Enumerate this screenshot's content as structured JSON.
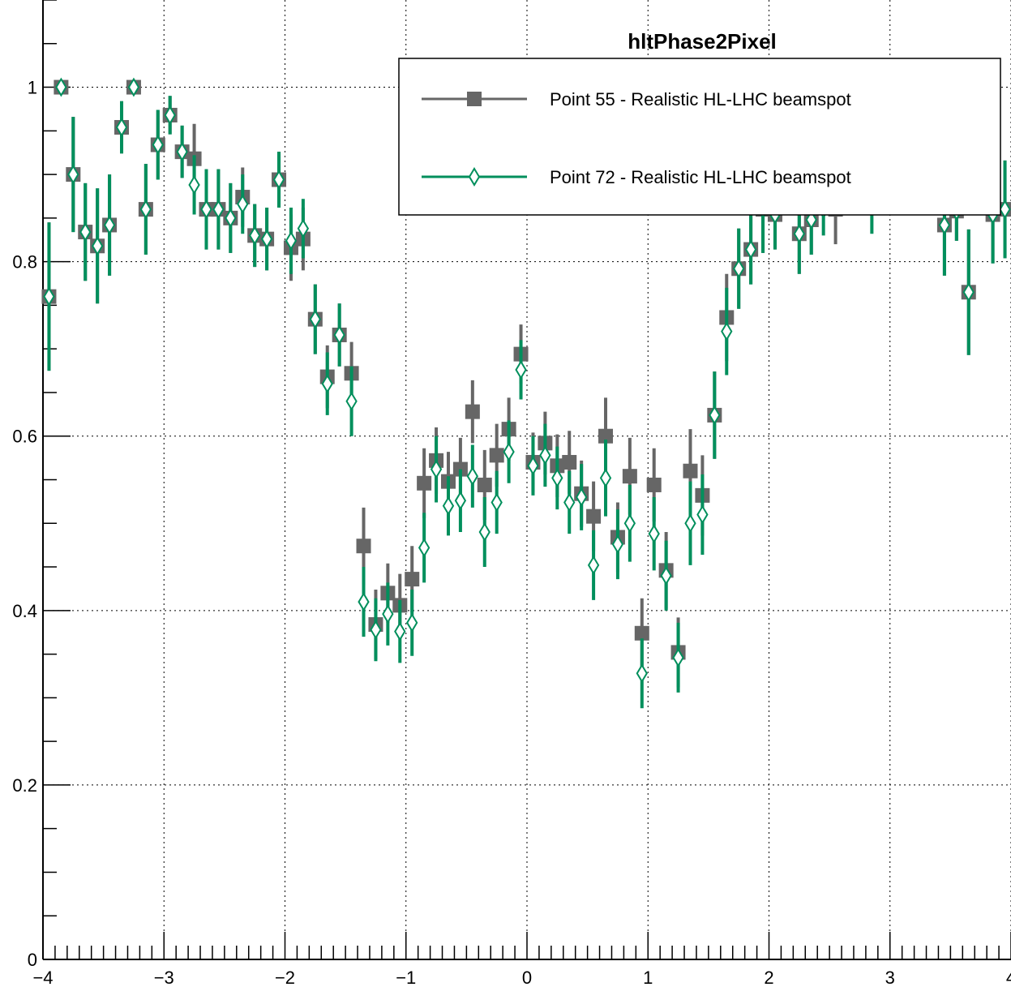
{
  "chart_data": {
    "type": "scatter",
    "title": "hltPhase2Pixel",
    "xlabel": "",
    "ylabel": "",
    "xlim": [
      -4,
      4
    ],
    "ylim": [
      0,
      1.1
    ],
    "x_ticks": [
      -4,
      -3,
      -2,
      -1,
      0,
      1,
      2,
      3,
      4
    ],
    "x_tick_labels": [
      "−4",
      "−3",
      "−2",
      "−1",
      "0",
      "1",
      "2",
      "3",
      "4"
    ],
    "y_ticks": [
      0,
      0.2,
      0.4,
      0.6,
      0.8,
      1
    ],
    "y_tick_labels": [
      "0",
      "0.2",
      "0.4",
      "0.6",
      "0.8",
      "1"
    ],
    "grid": true,
    "legend_position": "top-right",
    "series": [
      {
        "name": "Point 55 - Realistic HL-LHC beamspot",
        "marker": "filled-square",
        "color": "#666666",
        "points": [
          [
            -3.95,
            0.76,
            0.085
          ],
          [
            -3.85,
            1.0,
            0.0
          ],
          [
            -3.75,
            0.9,
            0.066
          ],
          [
            -3.65,
            0.834,
            0.056
          ],
          [
            -3.55,
            0.818,
            0.066
          ],
          [
            -3.45,
            0.842,
            0.058
          ],
          [
            -3.35,
            0.954,
            0.03
          ],
          [
            -3.25,
            1.0,
            0.0
          ],
          [
            -3.15,
            0.86,
            0.052
          ],
          [
            -3.05,
            0.934,
            0.04
          ],
          [
            -2.95,
            0.968,
            0.022
          ],
          [
            -2.85,
            0.926,
            0.03
          ],
          [
            -2.75,
            0.918,
            0.04
          ],
          [
            -2.65,
            0.86,
            0.046
          ],
          [
            -2.55,
            0.86,
            0.046
          ],
          [
            -2.45,
            0.85,
            0.04
          ],
          [
            -2.35,
            0.874,
            0.034
          ],
          [
            -2.25,
            0.83,
            0.036
          ],
          [
            -2.15,
            0.826,
            0.036
          ],
          [
            -2.05,
            0.894,
            0.032
          ],
          [
            -1.95,
            0.816,
            0.038
          ],
          [
            -1.85,
            0.826,
            0.036
          ],
          [
            -1.75,
            0.734,
            0.04
          ],
          [
            -1.65,
            0.668,
            0.036
          ],
          [
            -1.55,
            0.716,
            0.036
          ],
          [
            -1.45,
            0.672,
            0.036
          ],
          [
            -1.35,
            0.474,
            0.044
          ],
          [
            -1.25,
            0.384,
            0.04
          ],
          [
            -1.15,
            0.42,
            0.034
          ],
          [
            -1.05,
            0.406,
            0.036
          ],
          [
            -0.95,
            0.436,
            0.038
          ],
          [
            -0.85,
            0.546,
            0.04
          ],
          [
            -0.75,
            0.572,
            0.038
          ],
          [
            -0.65,
            0.548,
            0.034
          ],
          [
            -0.55,
            0.562,
            0.036
          ],
          [
            -0.45,
            0.628,
            0.036
          ],
          [
            -0.35,
            0.544,
            0.04
          ],
          [
            -0.25,
            0.578,
            0.036
          ],
          [
            -0.15,
            0.608,
            0.036
          ],
          [
            -0.05,
            0.694,
            0.034
          ],
          [
            0.05,
            0.57,
            0.034
          ],
          [
            0.15,
            0.592,
            0.036
          ],
          [
            0.25,
            0.566,
            0.036
          ],
          [
            0.35,
            0.57,
            0.036
          ],
          [
            0.45,
            0.534,
            0.038
          ],
          [
            0.55,
            0.508,
            0.04
          ],
          [
            0.65,
            0.6,
            0.044
          ],
          [
            0.75,
            0.484,
            0.04
          ],
          [
            0.85,
            0.554,
            0.044
          ],
          [
            0.95,
            0.374,
            0.04
          ],
          [
            1.05,
            0.544,
            0.042
          ],
          [
            1.15,
            0.446,
            0.044
          ],
          [
            1.25,
            0.352,
            0.04
          ],
          [
            1.35,
            0.56,
            0.048
          ],
          [
            1.45,
            0.532,
            0.046
          ],
          [
            1.55,
            0.624,
            0.05
          ],
          [
            1.65,
            0.736,
            0.05
          ],
          [
            1.75,
            0.792,
            0.046
          ],
          [
            1.85,
            0.814,
            0.04
          ],
          [
            1.95,
            0.86,
            0.05
          ],
          [
            2.05,
            0.854,
            0.04
          ],
          [
            2.25,
            0.832,
            0.046
          ],
          [
            2.35,
            0.848,
            0.04
          ],
          [
            2.55,
            0.86,
            0.04
          ],
          [
            3.45,
            0.842,
            0.058
          ],
          [
            3.55,
            0.858,
            0.034
          ],
          [
            3.65,
            0.765,
            0.072
          ],
          [
            3.85,
            0.854,
            0.056
          ],
          [
            3.95,
            0.86,
            0.056
          ]
        ]
      },
      {
        "name": "Point 72 - Realistic HL-LHC beamspot",
        "marker": "open-diamond",
        "color": "#008f5c",
        "points": [
          [
            -3.95,
            0.76,
            0.085
          ],
          [
            -3.85,
            1.0,
            0.0
          ],
          [
            -3.75,
            0.9,
            0.066
          ],
          [
            -3.65,
            0.834,
            0.056
          ],
          [
            -3.55,
            0.818,
            0.066
          ],
          [
            -3.45,
            0.842,
            0.058
          ],
          [
            -3.35,
            0.954,
            0.03
          ],
          [
            -3.25,
            1.0,
            0.0
          ],
          [
            -3.15,
            0.86,
            0.052
          ],
          [
            -3.05,
            0.934,
            0.04
          ],
          [
            -2.95,
            0.968,
            0.022
          ],
          [
            -2.85,
            0.926,
            0.03
          ],
          [
            -2.75,
            0.888,
            0.034
          ],
          [
            -2.65,
            0.86,
            0.046
          ],
          [
            -2.55,
            0.86,
            0.046
          ],
          [
            -2.45,
            0.85,
            0.04
          ],
          [
            -2.35,
            0.866,
            0.034
          ],
          [
            -2.25,
            0.83,
            0.036
          ],
          [
            -2.15,
            0.826,
            0.036
          ],
          [
            -2.05,
            0.894,
            0.032
          ],
          [
            -1.95,
            0.824,
            0.038
          ],
          [
            -1.85,
            0.838,
            0.034
          ],
          [
            -1.75,
            0.734,
            0.04
          ],
          [
            -1.65,
            0.66,
            0.036
          ],
          [
            -1.55,
            0.716,
            0.036
          ],
          [
            -1.45,
            0.64,
            0.04
          ],
          [
            -1.35,
            0.41,
            0.04
          ],
          [
            -1.25,
            0.378,
            0.036
          ],
          [
            -1.15,
            0.396,
            0.036
          ],
          [
            -1.05,
            0.376,
            0.036
          ],
          [
            -0.95,
            0.386,
            0.038
          ],
          [
            -0.85,
            0.472,
            0.04
          ],
          [
            -0.75,
            0.562,
            0.038
          ],
          [
            -0.65,
            0.52,
            0.034
          ],
          [
            -0.55,
            0.526,
            0.036
          ],
          [
            -0.45,
            0.554,
            0.036
          ],
          [
            -0.35,
            0.49,
            0.04
          ],
          [
            -0.25,
            0.524,
            0.036
          ],
          [
            -0.15,
            0.582,
            0.036
          ],
          [
            -0.05,
            0.676,
            0.034
          ],
          [
            0.05,
            0.566,
            0.034
          ],
          [
            0.15,
            0.578,
            0.036
          ],
          [
            0.25,
            0.552,
            0.036
          ],
          [
            0.35,
            0.524,
            0.036
          ],
          [
            0.45,
            0.53,
            0.038
          ],
          [
            0.55,
            0.452,
            0.04
          ],
          [
            0.65,
            0.552,
            0.044
          ],
          [
            0.75,
            0.476,
            0.04
          ],
          [
            0.85,
            0.5,
            0.044
          ],
          [
            0.95,
            0.328,
            0.04
          ],
          [
            1.05,
            0.488,
            0.042
          ],
          [
            1.15,
            0.44,
            0.04
          ],
          [
            1.25,
            0.346,
            0.04
          ],
          [
            1.35,
            0.5,
            0.048
          ],
          [
            1.45,
            0.51,
            0.046
          ],
          [
            1.55,
            0.624,
            0.05
          ],
          [
            1.65,
            0.72,
            0.05
          ],
          [
            1.75,
            0.792,
            0.046
          ],
          [
            1.85,
            0.814,
            0.04
          ],
          [
            1.95,
            0.86,
            0.05
          ],
          [
            2.05,
            0.854,
            0.04
          ],
          [
            2.25,
            0.832,
            0.046
          ],
          [
            2.35,
            0.848,
            0.04
          ],
          [
            2.45,
            0.86,
            0.03
          ],
          [
            2.85,
            0.862,
            0.03
          ],
          [
            3.45,
            0.842,
            0.058
          ],
          [
            3.55,
            0.858,
            0.034
          ],
          [
            3.65,
            0.765,
            0.072
          ],
          [
            3.85,
            0.854,
            0.056
          ],
          [
            3.95,
            0.86,
            0.056
          ]
        ]
      }
    ]
  }
}
